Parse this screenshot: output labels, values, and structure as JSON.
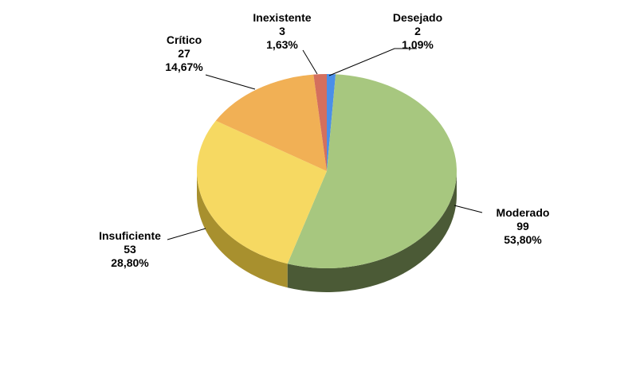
{
  "chart_data": {
    "type": "pie",
    "style": "3d",
    "categories": [
      "Desejado",
      "Moderado",
      "Insuficiente",
      "Crítico",
      "Inexistente"
    ],
    "values": [
      2,
      99,
      53,
      27,
      3
    ],
    "percent_labels": [
      "1,09%",
      "53,80%",
      "28,80%",
      "14,67%",
      "1,63%"
    ],
    "value_labels": [
      "2",
      "99",
      "53",
      "27",
      "3"
    ],
    "colors": [
      "#4a8fe8",
      "#a7c77f",
      "#f6d962",
      "#f1b055",
      "#d46f5d"
    ],
    "side_colors": [
      "#2a5fa8",
      "#4b5a36",
      "#a8902e",
      "#a8742a",
      "#8f3f33"
    ],
    "legend": "none"
  }
}
